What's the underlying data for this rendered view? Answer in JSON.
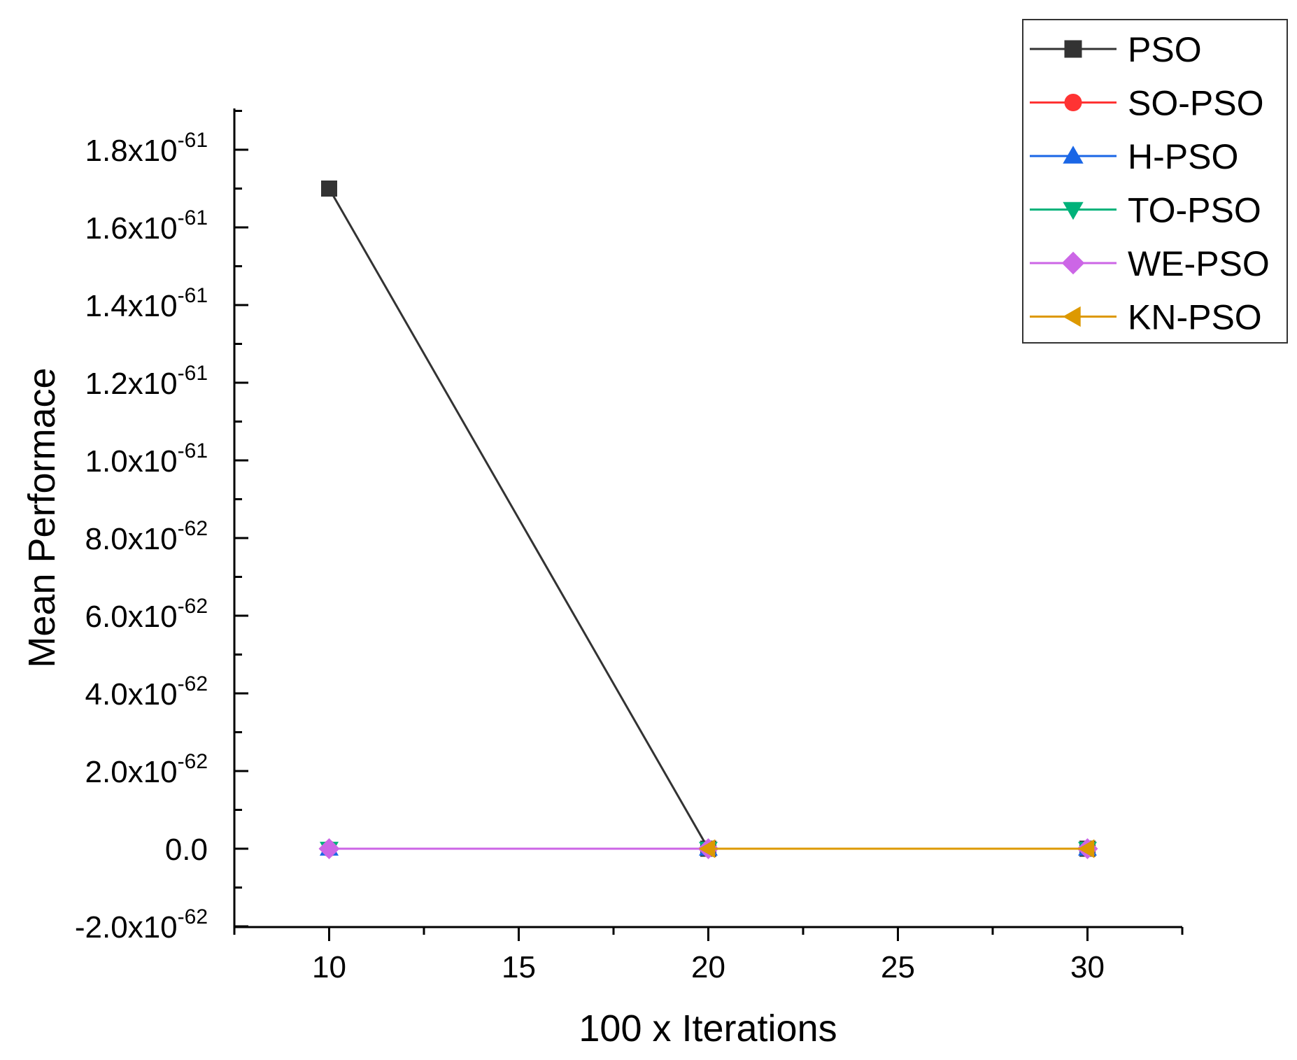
{
  "chart_data": {
    "type": "line",
    "title": "",
    "xlabel": "100 x Iterations",
    "ylabel": "Mean Performace",
    "x": [
      10,
      20,
      30
    ],
    "xlim": [
      7.5,
      32.5
    ],
    "ylim": [
      -2e-62,
      1.9e-61
    ],
    "x_ticks": [
      10,
      15,
      20,
      25,
      30
    ],
    "x_tick_labels": [
      "10",
      "15",
      "20",
      "25",
      "30"
    ],
    "y_ticks": [
      {
        "value": -2e-62,
        "mantissa": "-2.0x10",
        "exponent": "-62"
      },
      {
        "value": 0,
        "mantissa": "0.0",
        "exponent": ""
      },
      {
        "value": 2e-62,
        "mantissa": "2.0x10",
        "exponent": "-62"
      },
      {
        "value": 4e-62,
        "mantissa": "4.0x10",
        "exponent": "-62"
      },
      {
        "value": 6e-62,
        "mantissa": "6.0x10",
        "exponent": "-62"
      },
      {
        "value": 8e-62,
        "mantissa": "8.0x10",
        "exponent": "-62"
      },
      {
        "value": 1e-61,
        "mantissa": "1.0x10",
        "exponent": "-61"
      },
      {
        "value": 1.2e-61,
        "mantissa": "1.2x10",
        "exponent": "-61"
      },
      {
        "value": 1.4e-61,
        "mantissa": "1.4x10",
        "exponent": "-61"
      },
      {
        "value": 1.6e-61,
        "mantissa": "1.6x10",
        "exponent": "-61"
      },
      {
        "value": 1.8e-61,
        "mantissa": "1.8x10",
        "exponent": "-61"
      }
    ],
    "grid": false,
    "legend_position": "top-right",
    "series": [
      {
        "name": "PSO",
        "color": "#333333",
        "marker": "square",
        "values": [
          1.7e-61,
          0,
          0
        ]
      },
      {
        "name": "SO-PSO",
        "color": "#ff3333",
        "marker": "circle",
        "values": [
          0,
          0,
          0
        ]
      },
      {
        "name": "H-PSO",
        "color": "#1a66e6",
        "marker": "triangle-up",
        "values": [
          0,
          0,
          0
        ]
      },
      {
        "name": "TO-PSO",
        "color": "#00b27a",
        "marker": "triangle-down",
        "values": [
          0,
          0,
          0
        ]
      },
      {
        "name": "WE-PSO",
        "color": "#cc66e6",
        "marker": "diamond",
        "values": [
          0,
          0,
          0
        ]
      },
      {
        "name": "KN-PSO",
        "color": "#dd9900",
        "marker": "triangle-left",
        "values": [
          null,
          0,
          0
        ]
      }
    ]
  }
}
